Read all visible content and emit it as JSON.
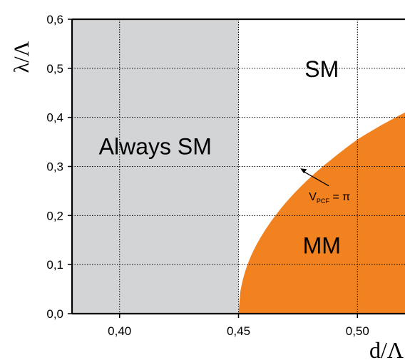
{
  "chart_data": {
    "type": "area",
    "title": "",
    "xlabel": "d/Λ",
    "ylabel": "λ/Λ",
    "xlim": [
      0.38,
      0.52
    ],
    "ylim": [
      0.0,
      0.6
    ],
    "grid": true,
    "x_ticks": [
      "0,40",
      "0,45",
      "0,50"
    ],
    "y_ticks": [
      "0,0",
      "0,1",
      "0,2",
      "0,3",
      "0,4",
      "0,5",
      "0,6"
    ],
    "shaded_region": {
      "label": "Always SM",
      "x_range": [
        0.38,
        0.45
      ],
      "color": "#d3d4d6"
    },
    "boundary_curve": {
      "label": "V_PCF = π",
      "color": "#f2811f",
      "x": [
        0.45,
        0.455,
        0.46,
        0.47,
        0.48,
        0.49,
        0.5,
        0.51,
        0.52
      ],
      "y": [
        0.0,
        0.115,
        0.161,
        0.227,
        0.277,
        0.318,
        0.355,
        0.384,
        0.41
      ]
    },
    "regions": [
      {
        "label": "SM",
        "x": 0.485,
        "y": 0.5
      },
      {
        "label": "MM",
        "x": 0.485,
        "y": 0.14
      }
    ],
    "annotation": {
      "text_main": "V",
      "text_sub": "PCF",
      "text_rest": " = π",
      "arrow_to": [
        0.476,
        0.296
      ],
      "label_at": [
        0.482,
        0.24
      ]
    }
  }
}
